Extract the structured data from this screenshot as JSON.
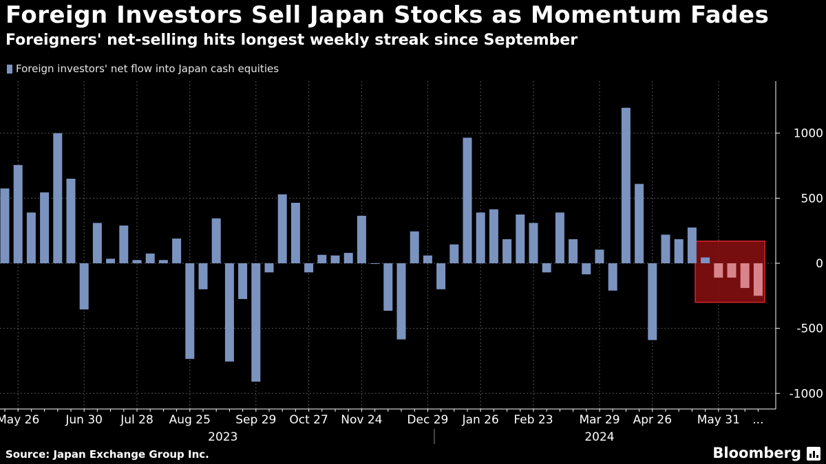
{
  "chart_data": {
    "type": "bar",
    "title": "Foreign Investors Sell Japan Stocks as Momentum Fades",
    "subtitle": "Foreigners' net-selling hits longest weekly streak since September",
    "legend": [
      "Foreign investors' net flow into Japan cash equities"
    ],
    "series": [
      {
        "name": "Foreign investors' net flow into Japan cash equities",
        "values": [
          575,
          755,
          390,
          545,
          1000,
          650,
          -355,
          310,
          35,
          290,
          25,
          75,
          25,
          190,
          -735,
          -200,
          345,
          -755,
          -275,
          -910,
          -70,
          530,
          465,
          -70,
          65,
          60,
          80,
          365,
          -5,
          -365,
          -585,
          245,
          60,
          -200,
          145,
          965,
          390,
          415,
          185,
          375,
          310,
          -70,
          390,
          185,
          -85,
          105,
          -210,
          1195,
          610,
          -590,
          220,
          185,
          275,
          45,
          -110,
          -110,
          -190,
          -250
        ]
      }
    ],
    "highlight": {
      "from_index": 53,
      "to_index": 57,
      "ymin": -300,
      "ymax": 170,
      "color": "#b3191d"
    },
    "xticks": [
      {
        "label": "May 26",
        "index": 1
      },
      {
        "label": "Jun 30",
        "index": 6
      },
      {
        "label": "Jul 28",
        "index": 10
      },
      {
        "label": "Aug 25",
        "index": 14
      },
      {
        "label": "Sep 29",
        "index": 19
      },
      {
        "label": "Oct 27",
        "index": 23
      },
      {
        "label": "Nov 24",
        "index": 27
      },
      {
        "label": "Dec 29",
        "index": 32
      },
      {
        "label": "Jan 26",
        "index": 36
      },
      {
        "label": "Feb 23",
        "index": 40
      },
      {
        "label": "Mar 29",
        "index": 45
      },
      {
        "label": "Apr 26",
        "index": 49
      },
      {
        "label": "May 31",
        "index": 54
      },
      {
        "label": "...",
        "index": 57
      }
    ],
    "years": [
      {
        "label": "2023",
        "index": 16.5
      },
      {
        "label": "2024",
        "index": 45
      }
    ],
    "year_divider_index": 32.5,
    "yticks": [
      1000,
      500,
      0,
      -500,
      -1000
    ],
    "ylim": [
      -1120,
      1400
    ],
    "xlabel": "",
    "ylabel": "",
    "colors": {
      "bar": "#7b93bf",
      "highlight_fill": "#8b0f12",
      "highlight_border": "#d4262b",
      "highlight_bar": "#d8848a"
    }
  },
  "source": "Source: Japan Exchange Group Inc.",
  "brand": "Bloomberg"
}
